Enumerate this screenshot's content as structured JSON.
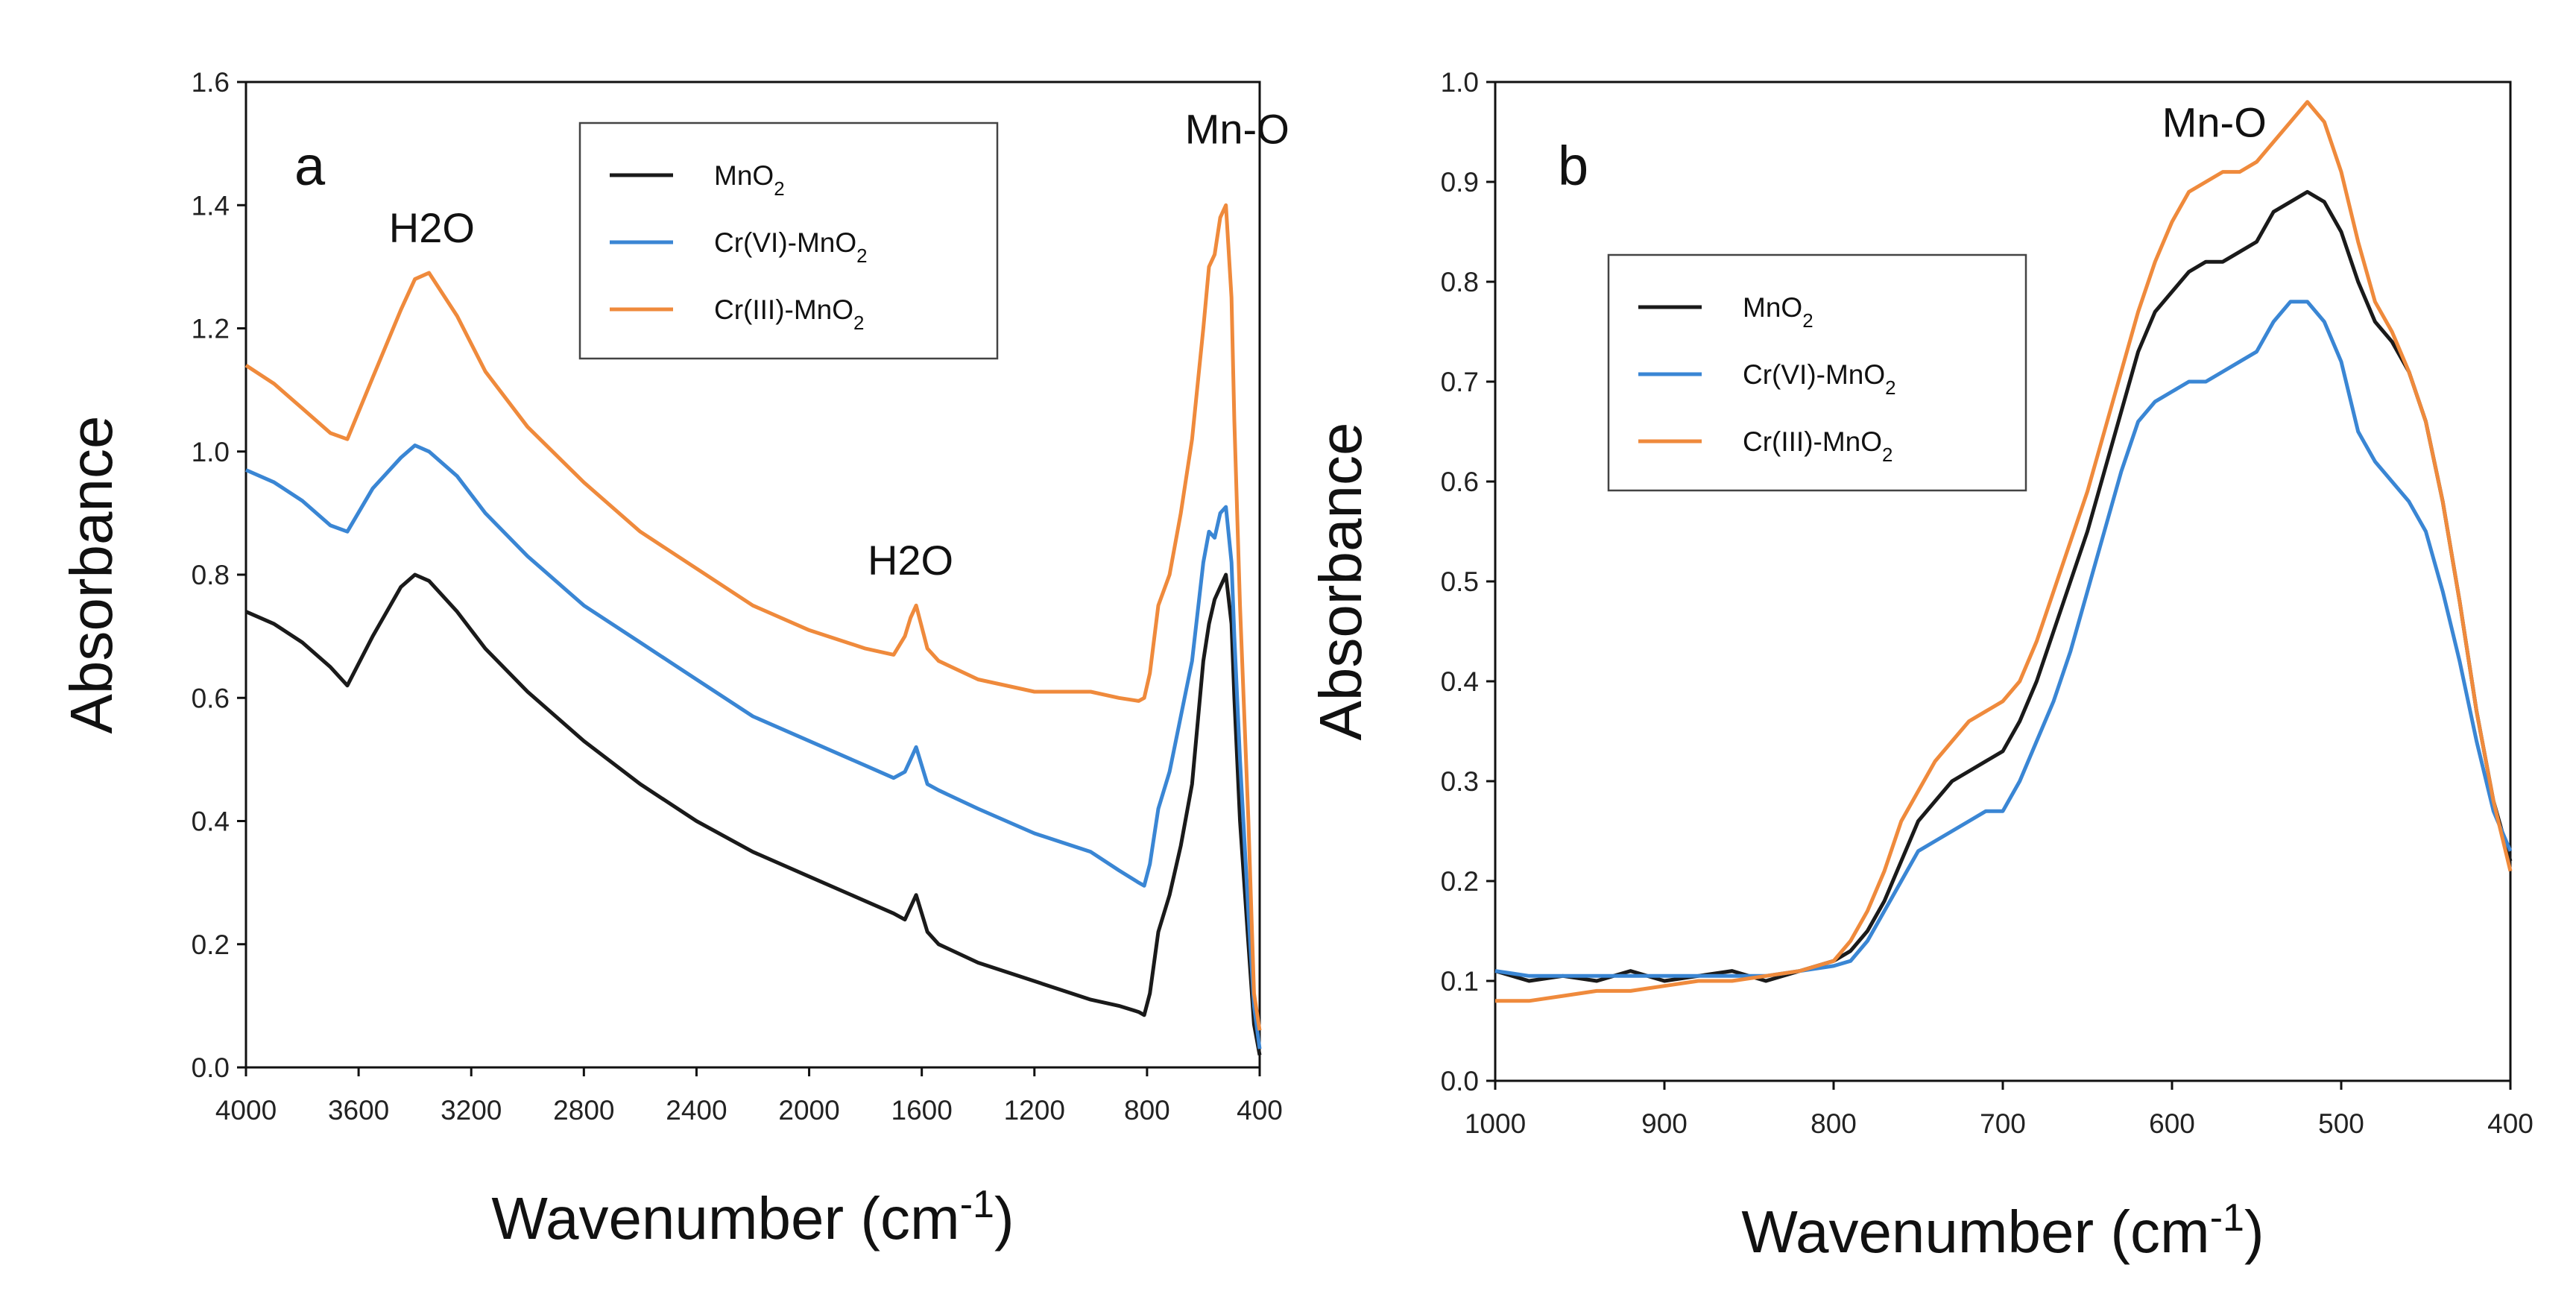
{
  "colors": {
    "MnO2": "#1a1a1a",
    "Cr(VI)-MnO2": "#3a86d4",
    "Cr(III)-MnO2": "#ef8a3c"
  },
  "chart_data": [
    {
      "panel": "a",
      "type": "line",
      "xlabel": "Wavenumber (cm-1)",
      "ylabel": "Absorbance",
      "xlim": [
        4000,
        400
      ],
      "ylim": [
        0.0,
        1.6
      ],
      "xticks": [
        "4000",
        "3600",
        "3200",
        "2800",
        "2400",
        "2000",
        "1600",
        "1200",
        "800",
        "400"
      ],
      "yticks": [
        "0.0",
        "0.2",
        "0.4",
        "0.6",
        "0.8",
        "1.0",
        "1.2",
        "1.4",
        "1.6"
      ],
      "annotations": [
        {
          "text": "H2O",
          "x": 3340,
          "y": 1.34
        },
        {
          "text": "H2O",
          "x": 1640,
          "y": 0.8
        },
        {
          "text": "Mn-O",
          "x": 480,
          "y": 1.5
        }
      ],
      "legend": [
        "MnO2",
        "Cr(VI)-MnO2",
        "Cr(III)-MnO2"
      ],
      "series": [
        {
          "name": "MnO2",
          "x": [
            4000,
            3900,
            3800,
            3700,
            3640,
            3550,
            3450,
            3400,
            3350,
            3250,
            3150,
            3000,
            2800,
            2600,
            2400,
            2200,
            2000,
            1800,
            1700,
            1660,
            1640,
            1620,
            1580,
            1540,
            1400,
            1200,
            1000,
            900,
            830,
            810,
            790,
            760,
            720,
            680,
            640,
            600,
            580,
            560,
            540,
            520,
            500,
            490,
            470,
            440,
            420,
            400
          ],
          "y": [
            0.74,
            0.72,
            0.69,
            0.65,
            0.62,
            0.7,
            0.78,
            0.8,
            0.79,
            0.74,
            0.68,
            0.61,
            0.53,
            0.46,
            0.4,
            0.35,
            0.31,
            0.27,
            0.25,
            0.24,
            0.26,
            0.28,
            0.22,
            0.2,
            0.17,
            0.14,
            0.11,
            0.1,
            0.09,
            0.085,
            0.12,
            0.22,
            0.28,
            0.36,
            0.46,
            0.66,
            0.72,
            0.76,
            0.78,
            0.8,
            0.72,
            0.6,
            0.4,
            0.2,
            0.07,
            0.02
          ]
        },
        {
          "name": "Cr(VI)-MnO2",
          "x": [
            4000,
            3900,
            3800,
            3700,
            3640,
            3550,
            3450,
            3400,
            3350,
            3250,
            3150,
            3000,
            2800,
            2600,
            2400,
            2200,
            2000,
            1800,
            1700,
            1660,
            1640,
            1620,
            1580,
            1540,
            1400,
            1200,
            1000,
            900,
            830,
            810,
            790,
            760,
            720,
            680,
            640,
            600,
            580,
            560,
            540,
            520,
            500,
            490,
            470,
            440,
            420,
            400
          ],
          "y": [
            0.97,
            0.95,
            0.92,
            0.88,
            0.87,
            0.94,
            0.99,
            1.01,
            1.0,
            0.96,
            0.9,
            0.83,
            0.75,
            0.69,
            0.63,
            0.57,
            0.53,
            0.49,
            0.47,
            0.48,
            0.5,
            0.52,
            0.46,
            0.45,
            0.42,
            0.38,
            0.35,
            0.32,
            0.3,
            0.295,
            0.33,
            0.42,
            0.48,
            0.57,
            0.66,
            0.82,
            0.87,
            0.86,
            0.9,
            0.91,
            0.82,
            0.7,
            0.5,
            0.25,
            0.1,
            0.03
          ]
        },
        {
          "name": "Cr(III)-MnO2",
          "x": [
            4000,
            3900,
            3800,
            3700,
            3640,
            3550,
            3450,
            3400,
            3350,
            3250,
            3150,
            3000,
            2800,
            2600,
            2400,
            2200,
            2000,
            1800,
            1700,
            1660,
            1640,
            1620,
            1580,
            1540,
            1400,
            1200,
            1000,
            900,
            830,
            810,
            790,
            760,
            720,
            680,
            640,
            600,
            580,
            560,
            540,
            520,
            500,
            490,
            470,
            440,
            420,
            400
          ],
          "y": [
            1.14,
            1.11,
            1.07,
            1.03,
            1.02,
            1.12,
            1.23,
            1.28,
            1.29,
            1.22,
            1.13,
            1.04,
            0.95,
            0.87,
            0.81,
            0.75,
            0.71,
            0.68,
            0.67,
            0.7,
            0.73,
            0.75,
            0.68,
            0.66,
            0.63,
            0.61,
            0.61,
            0.6,
            0.595,
            0.6,
            0.64,
            0.75,
            0.8,
            0.9,
            1.02,
            1.2,
            1.3,
            1.32,
            1.38,
            1.4,
            1.25,
            1.05,
            0.75,
            0.4,
            0.12,
            0.06
          ]
        }
      ]
    },
    {
      "panel": "b",
      "type": "line",
      "xlabel": "Wavenumber (cm-1)",
      "ylabel": "Absorbance",
      "xlim": [
        1000,
        400
      ],
      "ylim": [
        0.0,
        1.0
      ],
      "xticks": [
        "1000",
        "900",
        "800",
        "700",
        "600",
        "500",
        "400"
      ],
      "yticks": [
        "0.0",
        "0.1",
        "0.2",
        "0.3",
        "0.4",
        "0.5",
        "0.6",
        "0.7",
        "0.8",
        "0.9",
        "1.0"
      ],
      "annotations": [
        {
          "text": "Mn-O",
          "x": 575,
          "y": 0.945
        }
      ],
      "legend": [
        "MnO2",
        "Cr(VI)-MnO2",
        "Cr(III)-MnO2"
      ],
      "series": [
        {
          "name": "MnO2",
          "x": [
            1000,
            980,
            960,
            940,
            920,
            900,
            880,
            860,
            840,
            820,
            800,
            790,
            780,
            770,
            760,
            750,
            740,
            730,
            720,
            710,
            700,
            690,
            680,
            670,
            660,
            650,
            640,
            630,
            620,
            610,
            600,
            590,
            580,
            570,
            560,
            550,
            540,
            530,
            520,
            510,
            500,
            490,
            480,
            470,
            460,
            450,
            440,
            430,
            420,
            410,
            400
          ],
          "y": [
            0.11,
            0.1,
            0.105,
            0.1,
            0.11,
            0.1,
            0.105,
            0.11,
            0.1,
            0.11,
            0.12,
            0.13,
            0.15,
            0.18,
            0.22,
            0.26,
            0.28,
            0.3,
            0.31,
            0.32,
            0.33,
            0.36,
            0.4,
            0.45,
            0.5,
            0.55,
            0.61,
            0.67,
            0.73,
            0.77,
            0.79,
            0.81,
            0.82,
            0.82,
            0.83,
            0.84,
            0.87,
            0.88,
            0.89,
            0.88,
            0.85,
            0.8,
            0.76,
            0.74,
            0.71,
            0.66,
            0.58,
            0.48,
            0.37,
            0.28,
            0.22
          ]
        },
        {
          "name": "Cr(VI)-MnO2",
          "x": [
            1000,
            980,
            960,
            940,
            920,
            900,
            880,
            860,
            840,
            820,
            800,
            790,
            780,
            770,
            760,
            750,
            740,
            730,
            720,
            710,
            700,
            690,
            680,
            670,
            660,
            650,
            640,
            630,
            620,
            610,
            600,
            590,
            580,
            570,
            560,
            550,
            540,
            530,
            520,
            510,
            500,
            490,
            480,
            470,
            460,
            450,
            440,
            430,
            420,
            410,
            400
          ],
          "y": [
            0.11,
            0.105,
            0.105,
            0.105,
            0.105,
            0.105,
            0.105,
            0.105,
            0.105,
            0.11,
            0.115,
            0.12,
            0.14,
            0.17,
            0.2,
            0.23,
            0.24,
            0.25,
            0.26,
            0.27,
            0.27,
            0.3,
            0.34,
            0.38,
            0.43,
            0.49,
            0.55,
            0.61,
            0.66,
            0.68,
            0.69,
            0.7,
            0.7,
            0.71,
            0.72,
            0.73,
            0.76,
            0.78,
            0.78,
            0.76,
            0.72,
            0.65,
            0.62,
            0.6,
            0.58,
            0.55,
            0.49,
            0.42,
            0.34,
            0.27,
            0.23
          ]
        },
        {
          "name": "Cr(III)-MnO2",
          "x": [
            1000,
            980,
            960,
            940,
            920,
            900,
            880,
            860,
            840,
            820,
            800,
            790,
            780,
            770,
            760,
            750,
            740,
            730,
            720,
            710,
            700,
            690,
            680,
            670,
            660,
            650,
            640,
            630,
            620,
            610,
            600,
            590,
            580,
            570,
            560,
            550,
            540,
            530,
            520,
            510,
            500,
            490,
            480,
            470,
            460,
            450,
            440,
            430,
            420,
            410,
            400
          ],
          "y": [
            0.08,
            0.08,
            0.085,
            0.09,
            0.09,
            0.095,
            0.1,
            0.1,
            0.105,
            0.11,
            0.12,
            0.14,
            0.17,
            0.21,
            0.26,
            0.29,
            0.32,
            0.34,
            0.36,
            0.37,
            0.38,
            0.4,
            0.44,
            0.49,
            0.54,
            0.59,
            0.65,
            0.71,
            0.77,
            0.82,
            0.86,
            0.89,
            0.9,
            0.91,
            0.91,
            0.92,
            0.94,
            0.96,
            0.98,
            0.96,
            0.91,
            0.84,
            0.78,
            0.75,
            0.71,
            0.66,
            0.58,
            0.48,
            0.37,
            0.28,
            0.21
          ]
        }
      ]
    }
  ]
}
